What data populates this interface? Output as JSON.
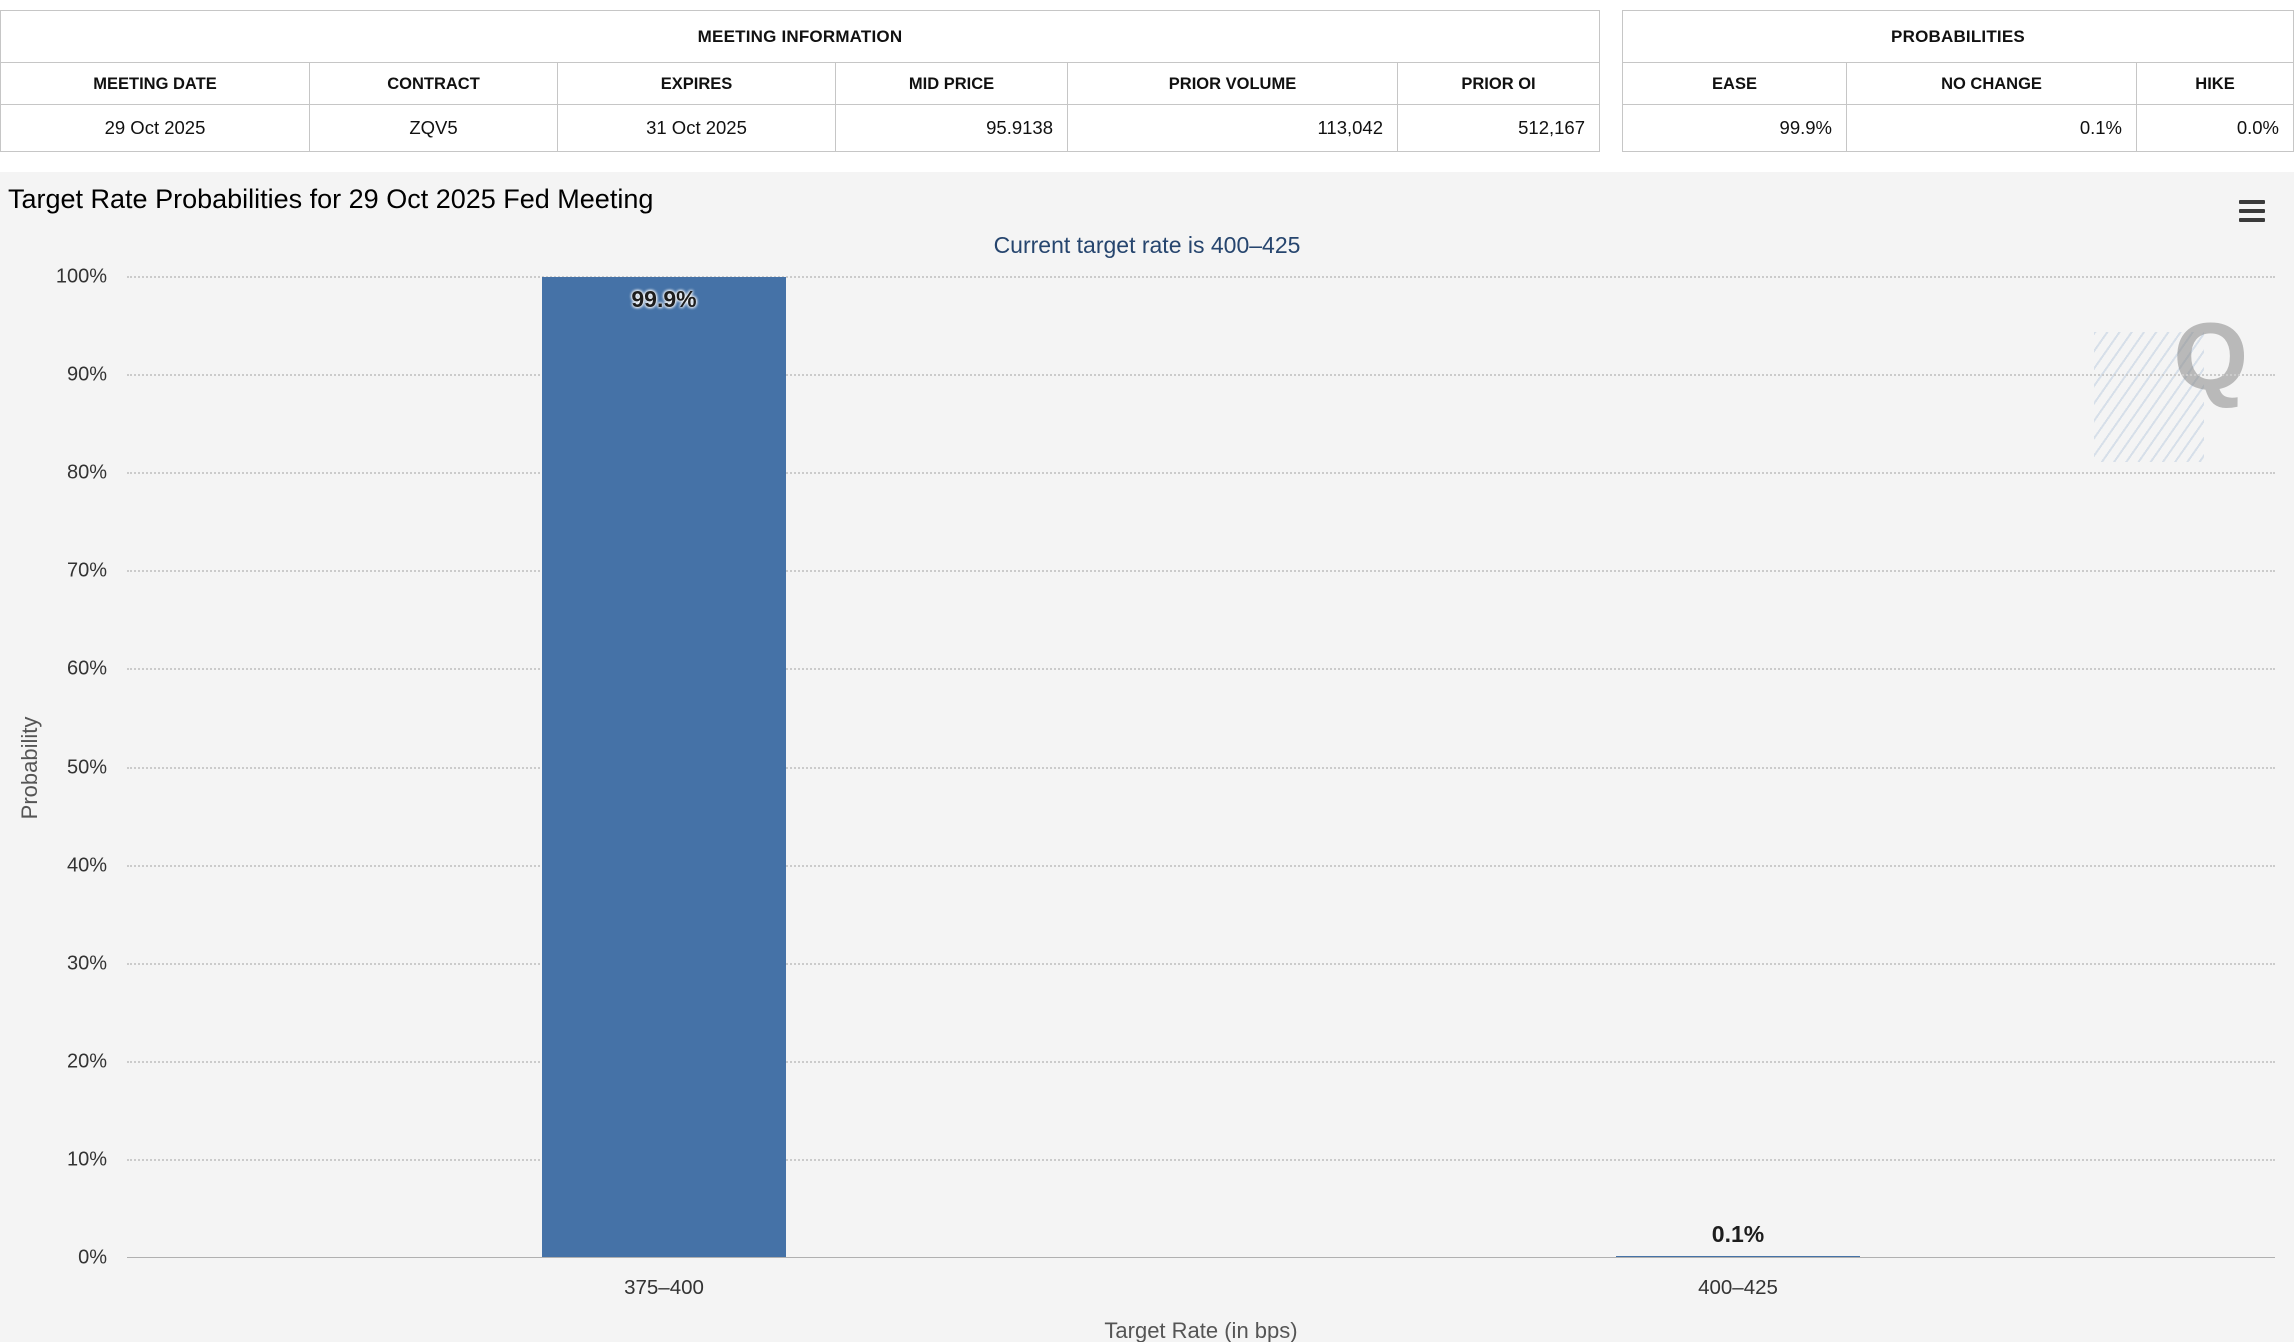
{
  "meeting_info": {
    "title": "MEETING INFORMATION",
    "columns": [
      "MEETING DATE",
      "CONTRACT",
      "EXPIRES",
      "MID PRICE",
      "PRIOR VOLUME",
      "PRIOR OI"
    ],
    "values": [
      "29 Oct 2025",
      "ZQV5",
      "31 Oct 2025",
      "95.9138",
      "113,042",
      "512,167"
    ]
  },
  "probabilities": {
    "title": "PROBABILITIES",
    "columns": [
      "EASE",
      "NO CHANGE",
      "HIKE"
    ],
    "values": [
      "99.9%",
      "0.1%",
      "0.0%"
    ]
  },
  "watermark_letter": "Q",
  "chart_data": {
    "type": "bar",
    "title": "Target Rate Probabilities for 29 Oct 2025 Fed Meeting",
    "subtitle": "Current target rate is 400–425",
    "categories": [
      "375–400",
      "400–425"
    ],
    "values": [
      99.9,
      0.1
    ],
    "labels": [
      "99.9%",
      "0.1%"
    ],
    "xlabel": "Target Rate (in bps)",
    "ylabel": "Probability",
    "ylim": [
      0,
      100
    ],
    "ytick_step": 10,
    "ytick_suffix": "%",
    "grid": "horizontal-dotted",
    "legend": "none",
    "bar_color": "#4572a7",
    "subtitle_color": "#26456e"
  }
}
